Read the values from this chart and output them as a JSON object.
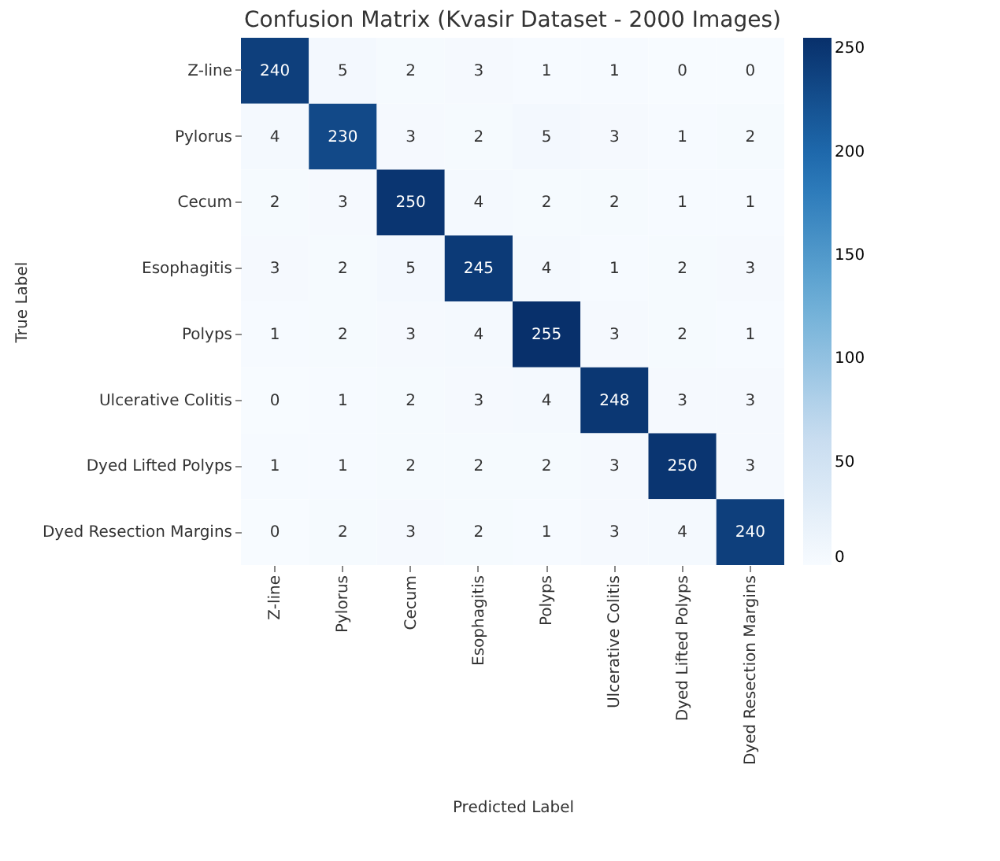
{
  "chart_data": {
    "type": "heatmap",
    "title": "Confusion Matrix (Kvasir Dataset - 2000 Images)",
    "xlabel": "Predicted Label",
    "ylabel": "True Label",
    "categories": [
      "Z-line",
      "Pylorus",
      "Cecum",
      "Esophagitis",
      "Polyps",
      "Ulcerative Colitis",
      "Dyed Lifted Polyps",
      "Dyed Resection Margins"
    ],
    "y_categories": [
      "Z-line",
      "Pylorus",
      "Cecum",
      "Esophagitis",
      "Polyps",
      "Ulcerative Colitis",
      "Dyed Lifted Polyps",
      "Dyed Resection Margins"
    ],
    "cells": [
      [
        240,
        5,
        2,
        3,
        1,
        1,
        0,
        0
      ],
      [
        4,
        230,
        3,
        2,
        5,
        3,
        1,
        2
      ],
      [
        2,
        3,
        250,
        4,
        2,
        2,
        1,
        1
      ],
      [
        3,
        2,
        5,
        245,
        4,
        1,
        2,
        3
      ],
      [
        1,
        2,
        3,
        4,
        255,
        3,
        2,
        1
      ],
      [
        0,
        1,
        2,
        3,
        4,
        248,
        3,
        3
      ],
      [
        1,
        1,
        2,
        2,
        2,
        3,
        250,
        3
      ],
      [
        0,
        2,
        3,
        2,
        1,
        3,
        4,
        240
      ]
    ],
    "data_labels": true,
    "clim": [
      0,
      255
    ],
    "cticks": [
      0,
      50,
      100,
      150,
      200,
      250
    ]
  }
}
